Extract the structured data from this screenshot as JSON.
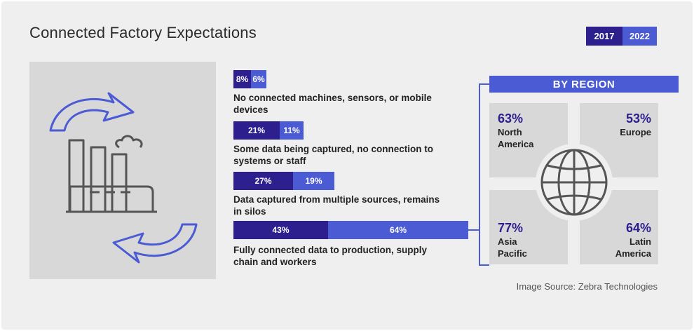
{
  "title": "Connected Factory Expectations",
  "legend": {
    "items": [
      "2017",
      "2022"
    ]
  },
  "colors": {
    "y2017": "#2e1f8e",
    "y2022": "#4b5bd3",
    "panel": "#d8d8d9",
    "background": "#efefef"
  },
  "illustration": {
    "icon": "factory-with-cycle-arrows-icon"
  },
  "chart_data": {
    "type": "bar",
    "orientation": "horizontal-stacked",
    "title": "Connected Factory Expectations",
    "categories": [
      "No connected machines, sensors, or mobile devices",
      "Some data being captured, no connection to systems or staff",
      "Data captured from multiple sources, remains in silos",
      "Fully connected data to production, supply chain and workers"
    ],
    "series": [
      {
        "name": "2017",
        "values": [
          8,
          21,
          27,
          43
        ]
      },
      {
        "name": "2022",
        "values": [
          6,
          11,
          19,
          64
        ]
      }
    ],
    "value_labels": {
      "2017": [
        "8%",
        "21%",
        "27%",
        "43%"
      ],
      "2022": [
        "6%",
        "11%",
        "19%",
        "64%"
      ]
    },
    "legend_position": "top-right",
    "grid": false
  },
  "region": {
    "header": "BY REGION",
    "globe_icon": "globe-icon",
    "items": [
      {
        "pct": "63%",
        "name": "North America"
      },
      {
        "pct": "53%",
        "name": "Europe"
      },
      {
        "pct": "77%",
        "name": "Asia Pacific"
      },
      {
        "pct": "64%",
        "name": "Latin America"
      }
    ]
  },
  "source": "Image Source: Zebra Technologies"
}
